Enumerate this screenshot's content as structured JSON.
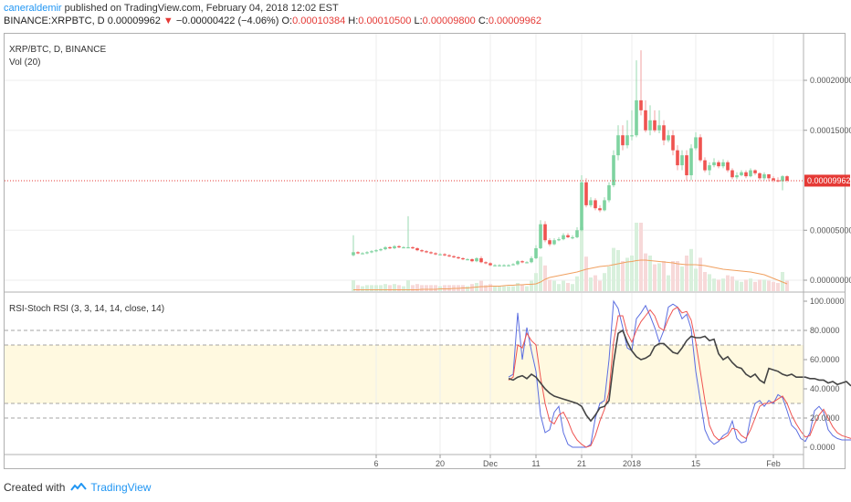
{
  "header": {
    "author": "caneraldemir",
    "published_text": " published on TradingView.com, February 04, 2018 12:02 EST",
    "symbol": "BINANCE:XRPBTC, D",
    "price": "0.00009962",
    "change_arrow": "▼",
    "change": "−0.00000422 (−4.06%)",
    "o_label": "O:",
    "o_value": "0.00010384",
    "h_label": "H:",
    "h_value": "0.00010500",
    "l_label": "L:",
    "l_value": "0.00009800",
    "c_label": "C:",
    "c_value": "0.00009962"
  },
  "main_pane": {
    "title": "XRP/BTC, D, BINANCE",
    "vol_label": "Vol (20)",
    "price_ticks": [
      "0.00020000",
      "0.00015000",
      "0.00005000",
      "0.00000000"
    ],
    "current_price_tag": "0.00009962"
  },
  "rsi_pane": {
    "title": "RSI-Stoch RSI (3, 3, 14, 14, close, 14)",
    "ticks": [
      "100.0000",
      "80.0000",
      "60.0000",
      "40.0000",
      "20.0000",
      "0.0000"
    ]
  },
  "x_axis": {
    "labels": [
      "6",
      "20",
      "Dec",
      "11",
      "21",
      "2018",
      "15",
      "Feb"
    ]
  },
  "footer": {
    "created_with": "Created with",
    "brand": "TradingView"
  },
  "colors": {
    "up": "#26a69a",
    "up_fill": "#7ed3a0",
    "down": "#ef5350",
    "stoch_k": "#5b6ee1",
    "stoch_d": "#ef5350",
    "rsi": "#444444",
    "band": "#fff9e0",
    "vol_ma": "#f0a060",
    "price_line": "#e53935"
  },
  "chart_data": [
    {
      "type": "candlestick",
      "title": "XRP/BTC, D, BINANCE",
      "x": [
        "Nov 1",
        "Nov 2",
        "Nov 3",
        "Nov 4",
        "Nov 5",
        "Nov 6",
        "Nov 7",
        "Nov 8",
        "Nov 9",
        "Nov 10",
        "Nov 11",
        "Nov 12",
        "Nov 13",
        "Nov 14",
        "Nov 15",
        "Nov 16",
        "Nov 17",
        "Nov 18",
        "Nov 19",
        "Nov 20",
        "Nov 21",
        "Nov 22",
        "Nov 23",
        "Nov 24",
        "Nov 25",
        "Nov 26",
        "Nov 27",
        "Nov 28",
        "Nov 29",
        "Nov 30",
        "Dec 1",
        "Dec 2",
        "Dec 3",
        "Dec 4",
        "Dec 5",
        "Dec 6",
        "Dec 7",
        "Dec 8",
        "Dec 9",
        "Dec 10",
        "Dec 11",
        "Dec 12",
        "Dec 13",
        "Dec 14",
        "Dec 15",
        "Dec 16",
        "Dec 17",
        "Dec 18",
        "Dec 19",
        "Dec 20",
        "Dec 21",
        "Dec 22",
        "Dec 23",
        "Dec 24",
        "Dec 25",
        "Dec 26",
        "Dec 27",
        "Dec 28",
        "Dec 29",
        "Dec 30",
        "Dec 31",
        "Jan 1",
        "Jan 2",
        "Jan 3",
        "Jan 4",
        "Jan 5",
        "Jan 6",
        "Jan 7",
        "Jan 8",
        "Jan 9",
        "Jan 10",
        "Jan 11",
        "Jan 12",
        "Jan 13",
        "Jan 14",
        "Jan 15",
        "Jan 16",
        "Jan 17",
        "Jan 18",
        "Jan 19",
        "Jan 20",
        "Jan 21",
        "Jan 22",
        "Jan 23",
        "Jan 24",
        "Jan 25",
        "Jan 26",
        "Jan 27",
        "Jan 28",
        "Jan 29",
        "Jan 30",
        "Jan 31",
        "Feb 1",
        "Feb 2",
        "Feb 3",
        "Feb 4"
      ],
      "open": [
        2.5,
        2.8,
        2.7,
        2.7,
        2.8,
        2.9,
        3.0,
        3.1,
        3.3,
        3.2,
        3.4,
        3.3,
        3.3,
        3.3,
        3.2,
        3.0,
        2.9,
        2.8,
        2.7,
        2.6,
        2.6,
        2.5,
        2.4,
        2.3,
        2.2,
        2.1,
        2.1,
        1.9,
        2.2,
        1.8,
        1.7,
        1.5,
        1.5,
        1.5,
        1.5,
        1.5,
        1.6,
        1.9,
        1.8,
        1.8,
        2.2,
        3.2,
        5.6,
        4.0,
        3.6,
        4.0,
        4.1,
        4.5,
        4.3,
        4.3,
        5.0,
        9.8,
        7.5,
        8.0,
        7.2,
        7.0,
        8.0,
        9.5,
        12.5,
        14.5,
        13.5,
        14.5,
        14.5,
        18.0,
        17.0,
        15.0,
        16.0,
        15.0,
        15.5,
        14.0,
        14.5,
        13.0,
        11.5,
        12.5,
        10.5,
        13.2,
        14.3,
        12.0,
        11.0,
        11.5,
        11.8,
        11.4,
        11.8,
        11.0,
        10.3,
        10.5,
        10.8,
        10.4,
        11.0,
        10.7,
        10.2,
        10.6,
        10.2,
        10.0,
        9.9,
        10.4
      ],
      "close": [
        2.8,
        2.7,
        2.7,
        2.8,
        2.9,
        3.0,
        3.1,
        3.3,
        3.2,
        3.4,
        3.3,
        3.3,
        3.3,
        3.2,
        3.0,
        2.9,
        2.8,
        2.7,
        2.6,
        2.6,
        2.5,
        2.4,
        2.3,
        2.2,
        2.1,
        2.1,
        1.9,
        2.2,
        1.8,
        1.7,
        1.5,
        1.5,
        1.5,
        1.5,
        1.5,
        1.6,
        1.9,
        1.8,
        1.8,
        2.2,
        3.2,
        5.6,
        4.0,
        3.6,
        4.0,
        4.1,
        4.5,
        4.3,
        4.3,
        5.0,
        9.8,
        7.5,
        8.0,
        7.2,
        7.0,
        8.0,
        9.5,
        12.5,
        14.5,
        13.5,
        14.5,
        14.5,
        18.0,
        17.0,
        15.0,
        16.0,
        15.0,
        15.5,
        14.0,
        14.5,
        13.0,
        11.5,
        12.5,
        10.5,
        13.2,
        14.3,
        12.0,
        11.0,
        11.5,
        11.8,
        11.4,
        11.8,
        11.0,
        10.3,
        10.5,
        10.8,
        10.4,
        11.0,
        10.7,
        10.2,
        10.6,
        10.2,
        10.0,
        9.9,
        10.4,
        9.96
      ],
      "high": [
        4.5,
        2.9,
        2.8,
        2.9,
        3.0,
        3.1,
        3.2,
        3.4,
        3.4,
        3.5,
        3.5,
        3.4,
        6.4,
        3.4,
        3.3,
        3.1,
        3.0,
        2.9,
        2.8,
        2.7,
        2.7,
        2.6,
        2.5,
        2.4,
        2.3,
        2.2,
        2.2,
        2.3,
        2.4,
        1.9,
        1.8,
        1.6,
        1.6,
        1.6,
        1.6,
        1.7,
        2.0,
        2.0,
        1.9,
        2.4,
        3.5,
        6.0,
        5.9,
        4.2,
        4.2,
        4.3,
        4.7,
        4.7,
        4.5,
        5.3,
        10.5,
        10.2,
        8.3,
        8.2,
        7.5,
        8.3,
        9.8,
        13.0,
        15.5,
        15.5,
        16.0,
        17.0,
        22.0,
        23.0,
        18.0,
        17.5,
        17.0,
        17.0,
        16.0,
        15.0,
        15.0,
        13.5,
        13.0,
        13.0,
        13.6,
        14.8,
        14.6,
        12.3,
        11.8,
        12.2,
        12.0,
        12.1,
        12.0,
        11.2,
        10.8,
        11.0,
        11.0,
        11.2,
        11.1,
        10.8,
        10.8,
        10.6,
        10.4,
        10.3,
        10.5,
        10.5
      ],
      "low": [
        2.4,
        2.6,
        2.6,
        2.6,
        2.7,
        2.8,
        2.9,
        3.0,
        3.1,
        3.1,
        3.2,
        3.2,
        3.2,
        3.1,
        2.9,
        2.8,
        2.7,
        2.6,
        2.5,
        2.5,
        2.4,
        2.3,
        2.2,
        2.1,
        2.0,
        2.0,
        1.8,
        1.8,
        1.7,
        1.6,
        1.4,
        1.4,
        1.4,
        1.4,
        1.4,
        1.5,
        1.5,
        1.7,
        1.7,
        1.7,
        2.1,
        3.1,
        3.8,
        3.4,
        3.5,
        3.9,
        4.0,
        4.2,
        4.1,
        4.2,
        4.9,
        7.3,
        7.3,
        7.0,
        6.8,
        6.9,
        7.8,
        9.3,
        12.0,
        13.0,
        13.2,
        14.0,
        14.3,
        16.5,
        14.8,
        14.5,
        14.8,
        14.7,
        13.5,
        13.8,
        12.5,
        11.0,
        11.0,
        10.0,
        10.0,
        13.0,
        11.8,
        10.8,
        10.5,
        11.3,
        11.2,
        11.2,
        10.8,
        10.1,
        10.1,
        10.4,
        10.2,
        10.3,
        10.5,
        10.0,
        10.0,
        9.9,
        9.8,
        9.8,
        9.0,
        9.8
      ],
      "volume_ma": [
        0.3,
        0.3,
        0.3,
        0.3,
        0.3,
        0.3,
        0.3,
        0.3,
        0.3,
        0.3,
        0.3,
        0.3,
        0.3,
        0.3,
        0.3,
        0.4,
        0.4,
        0.4,
        0.4,
        0.5,
        0.5,
        0.5,
        0.6,
        0.6,
        0.7,
        0.7,
        0.8,
        0.9,
        1.0,
        1.0,
        1.1,
        1.1,
        1.1,
        1.2,
        1.3,
        1.3,
        1.4,
        1.4,
        1.5,
        1.5,
        1.6,
        2.0,
        2.6,
        3.0,
        3.2,
        3.4,
        3.6,
        3.8,
        4.0,
        4.2,
        4.5,
        4.8,
        5.0,
        5.2,
        5.4,
        5.5,
        5.6,
        5.8,
        6.0,
        6.2,
        6.4,
        6.5,
        6.7,
        6.8,
        6.8,
        6.7,
        6.6,
        6.5,
        6.4,
        6.3,
        6.2,
        6.0,
        5.9,
        5.8,
        5.8,
        5.8,
        5.7,
        5.6,
        5.4,
        5.2,
        5.0,
        4.8,
        4.7,
        4.6,
        4.5,
        4.4,
        4.3,
        4.2,
        4.0,
        3.8,
        3.6,
        3.2,
        2.8,
        2.4,
        2.0,
        1.6
      ],
      "ylim": [
        0,
        24
      ],
      "y_unit_note": "values in units of 0.00001 BTC"
    },
    {
      "type": "line",
      "title": "RSI-Stoch RSI (3, 3, 14, 14, close, 14)",
      "x_start_index": 20,
      "series": [
        {
          "name": "RSI",
          "values": [
            47,
            46,
            48,
            49,
            47,
            50,
            48,
            44,
            40,
            37,
            35,
            34,
            33,
            32,
            31,
            30,
            28,
            22,
            18,
            22,
            27,
            28,
            32,
            58,
            78,
            80,
            72,
            66,
            62,
            60,
            61,
            63,
            69,
            71,
            71,
            68,
            65,
            64,
            68,
            73,
            76,
            75,
            75,
            76,
            73,
            74,
            64,
            60,
            62,
            58,
            55,
            54,
            50,
            48,
            50,
            46,
            44,
            54,
            53,
            52,
            50,
            49,
            50,
            48,
            48,
            48,
            47,
            47,
            46,
            46,
            44,
            45,
            43,
            44,
            45,
            42
          ]
        },
        {
          "name": "%K",
          "values": [
            48,
            50,
            92,
            60,
            82,
            66,
            52,
            22,
            10,
            12,
            24,
            28,
            10,
            2,
            0,
            0,
            0,
            0,
            2,
            20,
            30,
            32,
            60,
            100,
            95,
            82,
            68,
            66,
            88,
            92,
            97,
            90,
            82,
            72,
            80,
            96,
            98,
            96,
            88,
            91,
            81,
            52,
            32,
            12,
            5,
            2,
            4,
            8,
            10,
            18,
            6,
            3,
            4,
            20,
            30,
            32,
            28,
            32,
            30,
            36,
            34,
            25,
            15,
            12,
            6,
            4,
            10,
            25,
            28,
            24,
            12,
            8,
            6,
            5,
            5,
            5
          ]
        },
        {
          "name": "%D",
          "values": [
            46,
            48,
            70,
            68,
            78,
            73,
            70,
            48,
            30,
            18,
            16,
            22,
            24,
            18,
            10,
            5,
            2,
            0,
            1,
            8,
            18,
            26,
            38,
            72,
            90,
            90,
            78,
            72,
            80,
            86,
            90,
            94,
            90,
            82,
            80,
            88,
            94,
            96,
            92,
            93,
            87,
            72,
            52,
            32,
            15,
            8,
            5,
            6,
            8,
            13,
            12,
            8,
            6,
            12,
            20,
            28,
            30,
            30,
            31,
            33,
            35,
            30,
            22,
            16,
            11,
            7,
            8,
            16,
            22,
            26,
            20,
            14,
            10,
            8,
            7,
            6
          ]
        }
      ],
      "ylim": [
        0,
        100
      ],
      "band": [
        30,
        70
      ],
      "guides": [
        20,
        80
      ]
    }
  ]
}
